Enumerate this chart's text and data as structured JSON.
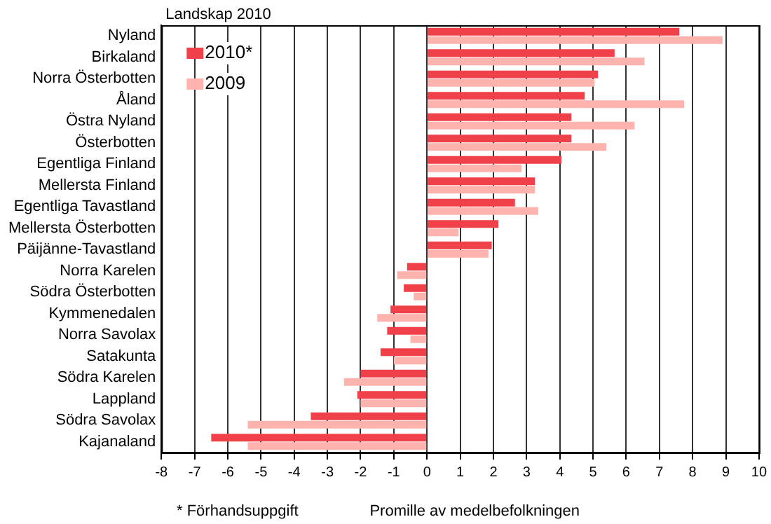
{
  "chart_data": {
    "type": "bar",
    "orientation": "horizontal",
    "title": "Landskap 2010",
    "xlabel": "Promille av medelbefolkningen",
    "annotations": [
      "* Förhandsuppgift"
    ],
    "categories": [
      "Nyland",
      "Birkaland",
      "Norra Österbotten",
      "Åland",
      "Östra Nyland",
      "Österbotten",
      "Egentliga Finland",
      "Mellersta Finland",
      "Egentliga Tavastland",
      "Mellersta Österbotten",
      "Päijänne-Tavastland",
      "Norra Karelen",
      "Södra Österbotten",
      "Kymmenedalen",
      "Norra Savolax",
      "Satakunta",
      "Södra Karelen",
      "Lappland",
      "Södra Savolax",
      "Kajanaland"
    ],
    "series": [
      {
        "name": "2010*",
        "color": "#f0404a",
        "values": [
          7.6,
          5.65,
          5.15,
          4.75,
          4.35,
          4.35,
          4.05,
          3.25,
          2.65,
          2.15,
          1.95,
          -0.6,
          -0.7,
          -1.1,
          -1.2,
          -1.4,
          -2.0,
          -2.1,
          -3.5,
          -6.5
        ]
      },
      {
        "name": "2009",
        "color": "#ffb3ae",
        "values": [
          8.9,
          6.55,
          5.05,
          7.75,
          6.25,
          5.4,
          2.85,
          3.25,
          3.35,
          0.95,
          1.85,
          -0.9,
          -0.4,
          -1.5,
          -0.5,
          -1.0,
          -2.5,
          -2.0,
          -5.4,
          -5.4
        ]
      }
    ],
    "xlim": [
      -8,
      10
    ],
    "xticks": [
      -8,
      -7,
      -6,
      -5,
      -4,
      -3,
      -2,
      -1,
      0,
      1,
      2,
      3,
      4,
      5,
      6,
      7,
      8,
      9,
      10
    ],
    "grid": "x",
    "legend": "top left"
  }
}
